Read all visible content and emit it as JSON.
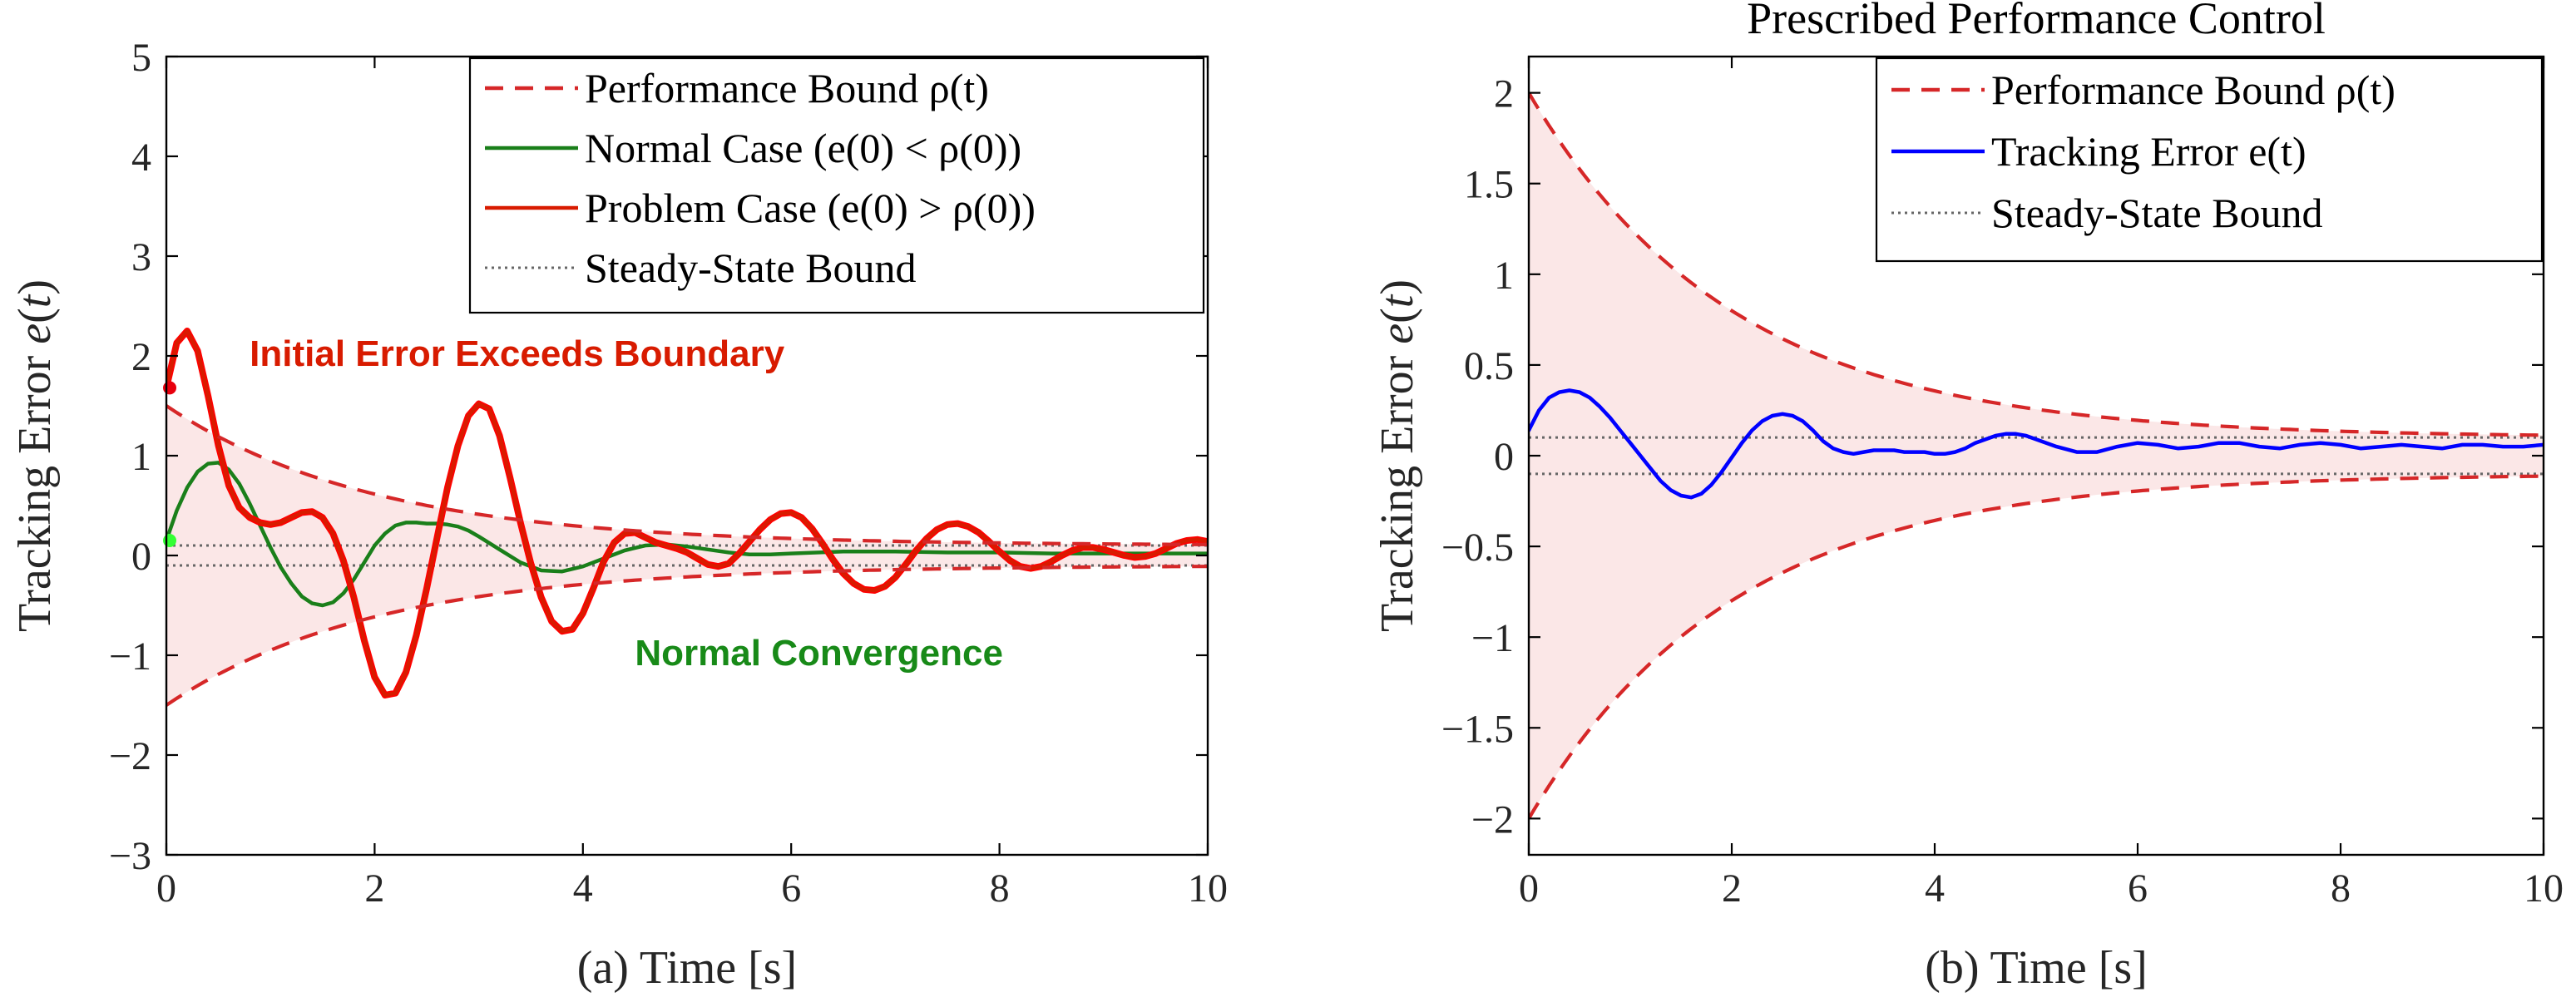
{
  "colors": {
    "bound": "#d62728",
    "fill": "#fbe7e7",
    "normal": "#1a7f1a",
    "problem": "#d81b00",
    "problem_highlight": "#ff0000",
    "tracking": "#0000ff",
    "steady": "#666666",
    "annot_red": "#d81b00",
    "annot_green": "#188a18",
    "start_red": "#e8000d",
    "start_green": "#33ff33"
  },
  "chart_data": [
    {
      "type": "line",
      "title": "",
      "xlabel": "(a) Time [s]",
      "ylabel": "Tracking Error e(t)",
      "xlim": [
        0,
        10
      ],
      "ylim": [
        -3,
        5
      ],
      "xticks": [
        0,
        2,
        4,
        6,
        8,
        10
      ],
      "xtick_labels": [
        "0",
        "2",
        "4",
        "6",
        "8",
        "10"
      ],
      "yticks": [
        -3,
        -2,
        -1,
        0,
        1,
        2,
        3,
        4,
        5
      ],
      "ytick_labels": [
        "−3",
        "−2",
        "−1",
        "0",
        "1",
        "2",
        "3",
        "4",
        "5"
      ],
      "bound": {
        "rho0": 1.5,
        "rho_inf": 0.1,
        "decay": 0.5
      },
      "steady_state": 0.1,
      "legend_position": "top-right",
      "legend": [
        {
          "label": "Performance Bound ρ(t)",
          "style": "dashed",
          "color_key": "bound"
        },
        {
          "label": "Normal Case (e(0) < ρ(0))",
          "style": "solid",
          "color_key": "normal"
        },
        {
          "label": "Problem Case (e(0) > ρ(0))",
          "style": "solid",
          "color_key": "problem"
        },
        {
          "label": "Steady-State Bound",
          "style": "dotted",
          "color_key": "steady"
        }
      ],
      "series": [
        {
          "name": "Normal Case",
          "x": [
            0,
            0.1,
            0.2,
            0.3,
            0.4,
            0.5,
            0.6,
            0.7,
            0.8,
            0.9,
            1.0,
            1.1,
            1.2,
            1.3,
            1.4,
            1.5,
            1.6,
            1.7,
            1.8,
            1.9,
            2.0,
            2.1,
            2.2,
            2.3,
            2.4,
            2.5,
            2.6,
            2.7,
            2.8,
            2.9,
            3.0,
            3.2,
            3.4,
            3.6,
            3.8,
            4.0,
            4.2,
            4.4,
            4.6,
            4.8,
            5.0,
            5.2,
            5.4,
            5.6,
            5.8,
            6.0,
            6.5,
            7.0,
            7.5,
            8.0,
            8.5,
            9.0,
            9.5,
            10.0
          ],
          "y": [
            0.15,
            0.45,
            0.68,
            0.84,
            0.92,
            0.93,
            0.86,
            0.72,
            0.52,
            0.3,
            0.08,
            -0.12,
            -0.28,
            -0.41,
            -0.48,
            -0.5,
            -0.47,
            -0.38,
            -0.24,
            -0.07,
            0.1,
            0.22,
            0.3,
            0.33,
            0.33,
            0.32,
            0.32,
            0.31,
            0.29,
            0.25,
            0.19,
            0.06,
            -0.07,
            -0.15,
            -0.16,
            -0.11,
            -0.03,
            0.05,
            0.1,
            0.11,
            0.09,
            0.06,
            0.03,
            0.01,
            0.01,
            0.02,
            0.04,
            0.04,
            0.03,
            0.03,
            0.02,
            0.02,
            0.02,
            0.02
          ]
        },
        {
          "name": "Problem Case",
          "x": [
            0,
            0.1,
            0.2,
            0.3,
            0.4,
            0.5,
            0.6,
            0.7,
            0.8,
            0.9,
            1.0,
            1.1,
            1.2,
            1.3,
            1.4,
            1.5,
            1.6,
            1.7,
            1.8,
            1.9,
            2.0,
            2.1,
            2.2,
            2.3,
            2.4,
            2.5,
            2.6,
            2.7,
            2.8,
            2.9,
            3.0,
            3.1,
            3.2,
            3.3,
            3.4,
            3.5,
            3.6,
            3.7,
            3.8,
            3.9,
            4.0,
            4.1,
            4.2,
            4.3,
            4.4,
            4.5,
            4.6,
            4.7,
            4.8,
            4.9,
            5.0,
            5.1,
            5.2,
            5.3,
            5.4,
            5.5,
            5.6,
            5.7,
            5.8,
            5.9,
            6.0,
            6.1,
            6.2,
            6.3,
            6.4,
            6.5,
            6.6,
            6.7,
            6.8,
            6.9,
            7.0,
            7.1,
            7.2,
            7.3,
            7.4,
            7.5,
            7.6,
            7.7,
            7.8,
            7.9,
            8.0,
            8.1,
            8.2,
            8.3,
            8.4,
            8.5,
            8.6,
            8.7,
            8.8,
            8.9,
            9.0,
            9.1,
            9.2,
            9.3,
            9.4,
            9.5,
            9.6,
            9.7,
            9.8,
            9.9,
            10.0
          ],
          "y": [
            1.68,
            2.13,
            2.25,
            2.05,
            1.6,
            1.1,
            0.7,
            0.48,
            0.38,
            0.33,
            0.31,
            0.33,
            0.38,
            0.43,
            0.44,
            0.38,
            0.22,
            -0.05,
            -0.42,
            -0.85,
            -1.22,
            -1.4,
            -1.38,
            -1.17,
            -0.8,
            -0.33,
            0.18,
            0.68,
            1.1,
            1.4,
            1.52,
            1.47,
            1.2,
            0.78,
            0.33,
            -0.08,
            -0.42,
            -0.66,
            -0.76,
            -0.74,
            -0.58,
            -0.33,
            -0.06,
            0.13,
            0.22,
            0.23,
            0.18,
            0.13,
            0.1,
            0.07,
            0.03,
            -0.03,
            -0.09,
            -0.11,
            -0.08,
            0.02,
            0.14,
            0.26,
            0.36,
            0.42,
            0.43,
            0.38,
            0.27,
            0.12,
            -0.04,
            -0.18,
            -0.28,
            -0.34,
            -0.35,
            -0.31,
            -0.22,
            -0.09,
            0.05,
            0.17,
            0.26,
            0.31,
            0.32,
            0.29,
            0.23,
            0.14,
            0.04,
            -0.05,
            -0.11,
            -0.13,
            -0.11,
            -0.06,
            0.0,
            0.05,
            0.08,
            0.08,
            0.06,
            0.03,
            0.0,
            -0.02,
            -0.01,
            0.02,
            0.07,
            0.12,
            0.15,
            0.16,
            0.14
          ]
        }
      ],
      "annotations": [
        {
          "text": "Initial Error Exceeds Boundary",
          "x": 0.8,
          "y": 1.9,
          "color_key": "annot_red"
        },
        {
          "text": "Normal Convergence",
          "x": 4.5,
          "y": -1.1,
          "color_key": "annot_green"
        }
      ]
    },
    {
      "type": "line",
      "title": "Prescribed Performance Control",
      "xlabel": "(b) Time [s]",
      "ylabel": "Tracking Error e(t)",
      "xlim": [
        0,
        10
      ],
      "ylim": [
        -2.2,
        2.2
      ],
      "xticks": [
        0,
        2,
        4,
        6,
        8,
        10
      ],
      "xtick_labels": [
        "0",
        "2",
        "4",
        "6",
        "8",
        "10"
      ],
      "yticks": [
        -2,
        -1.5,
        -1,
        -0.5,
        0,
        0.5,
        1,
        1.5,
        2
      ],
      "ytick_labels": [
        "−2",
        "−1.5",
        "−1",
        "−0.5",
        "0",
        "0.5",
        "1",
        "1.5",
        "2"
      ],
      "bound": {
        "rho0": 2.0,
        "rho_inf": 0.1,
        "decay": 0.5
      },
      "steady_state": 0.1,
      "legend_position": "top-right",
      "legend": [
        {
          "label": "Performance Bound ρ(t)",
          "style": "dashed",
          "color_key": "bound"
        },
        {
          "label": "Tracking Error e(t)",
          "style": "solid",
          "color_key": "tracking"
        },
        {
          "label": "Steady-State Bound",
          "style": "dotted",
          "color_key": "steady"
        }
      ],
      "series": [
        {
          "name": "Tracking Error",
          "x": [
            0,
            0.1,
            0.2,
            0.3,
            0.4,
            0.5,
            0.6,
            0.7,
            0.8,
            0.9,
            1.0,
            1.1,
            1.2,
            1.3,
            1.4,
            1.5,
            1.6,
            1.7,
            1.8,
            1.9,
            2.0,
            2.1,
            2.2,
            2.3,
            2.4,
            2.5,
            2.6,
            2.7,
            2.8,
            2.9,
            3.0,
            3.1,
            3.2,
            3.3,
            3.4,
            3.5,
            3.6,
            3.7,
            3.8,
            3.9,
            4.0,
            4.1,
            4.2,
            4.3,
            4.4,
            4.5,
            4.6,
            4.7,
            4.8,
            4.9,
            5.0,
            5.2,
            5.4,
            5.6,
            5.8,
            6.0,
            6.2,
            6.4,
            6.6,
            6.8,
            7.0,
            7.2,
            7.4,
            7.6,
            7.8,
            8.0,
            8.2,
            8.4,
            8.6,
            8.8,
            9.0,
            9.2,
            9.4,
            9.6,
            9.8,
            10.0
          ],
          "y": [
            0.14,
            0.25,
            0.32,
            0.35,
            0.36,
            0.35,
            0.32,
            0.27,
            0.21,
            0.14,
            0.07,
            0.0,
            -0.07,
            -0.14,
            -0.19,
            -0.22,
            -0.23,
            -0.21,
            -0.16,
            -0.09,
            -0.01,
            0.07,
            0.14,
            0.19,
            0.22,
            0.23,
            0.22,
            0.19,
            0.14,
            0.08,
            0.04,
            0.02,
            0.01,
            0.02,
            0.03,
            0.03,
            0.03,
            0.02,
            0.02,
            0.02,
            0.01,
            0.01,
            0.02,
            0.04,
            0.07,
            0.09,
            0.11,
            0.12,
            0.12,
            0.11,
            0.09,
            0.05,
            0.02,
            0.02,
            0.05,
            0.07,
            0.06,
            0.04,
            0.05,
            0.07,
            0.07,
            0.05,
            0.04,
            0.06,
            0.07,
            0.06,
            0.04,
            0.05,
            0.06,
            0.05,
            0.04,
            0.06,
            0.06,
            0.05,
            0.05,
            0.06
          ]
        }
      ],
      "annotations": []
    }
  ]
}
